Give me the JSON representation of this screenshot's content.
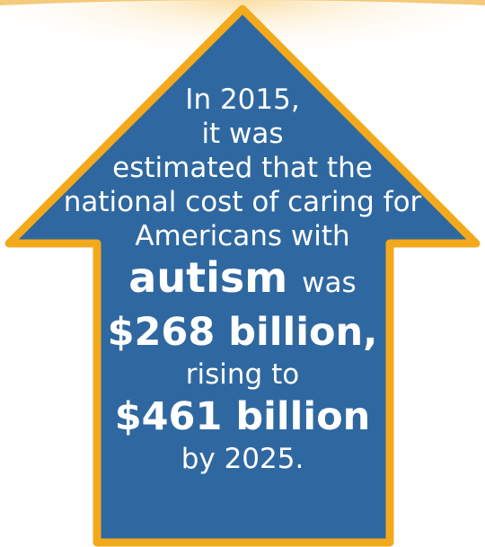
{
  "colors": {
    "arrow_fill": "#2f68a0",
    "arrow_border": "#f3a91c",
    "text": "#ffffff",
    "glow": "#f5c060"
  },
  "arrow_icon": "up-arrow-shape",
  "message": {
    "line1": "In 2015,",
    "line2": "it was",
    "line3": "estimated that the",
    "line4": "national cost of caring for",
    "line5": "Americans with",
    "line6_emphasis": "autism",
    "line6_tail": "was",
    "line7": "$268 billion,",
    "line8": "rising to",
    "line9": "$461 billion",
    "line10": "by 2025."
  }
}
